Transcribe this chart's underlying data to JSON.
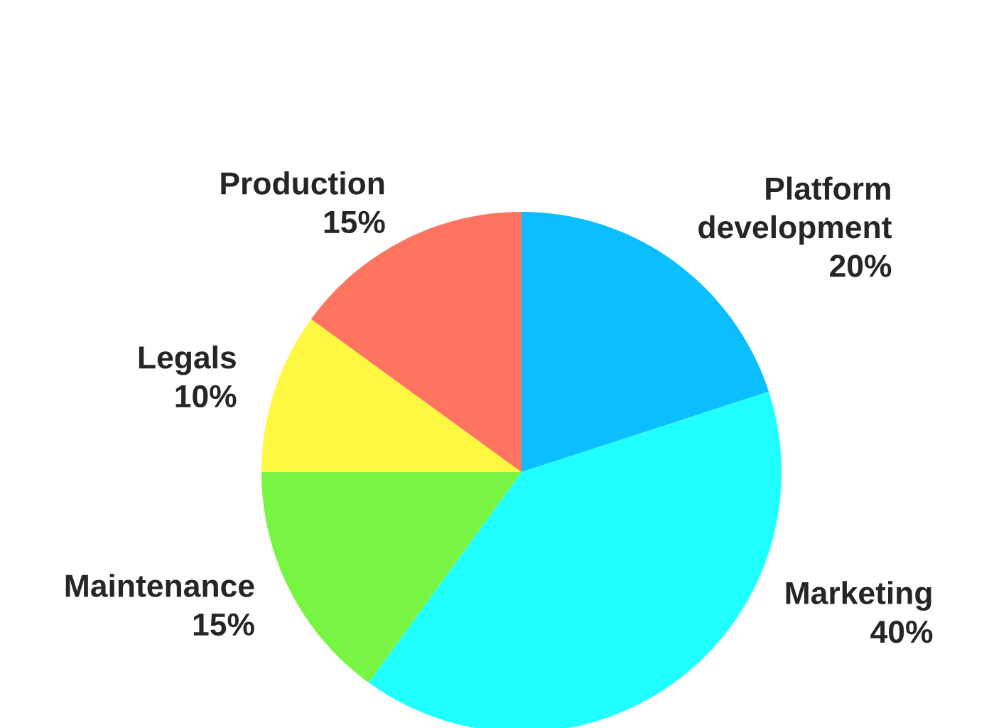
{
  "chart_data": {
    "type": "pie",
    "categories": [
      "Platform development",
      "Marketing",
      "Maintenance",
      "Legals",
      "Production"
    ],
    "values": [
      20,
      40,
      15,
      10,
      15
    ],
    "value_labels": [
      "20%",
      "40%",
      "15%",
      "10%",
      "15%"
    ],
    "colors": [
      "#0bbfff",
      "#1fffff",
      "#77f542",
      "#fff740",
      "#ff7460"
    ]
  }
}
